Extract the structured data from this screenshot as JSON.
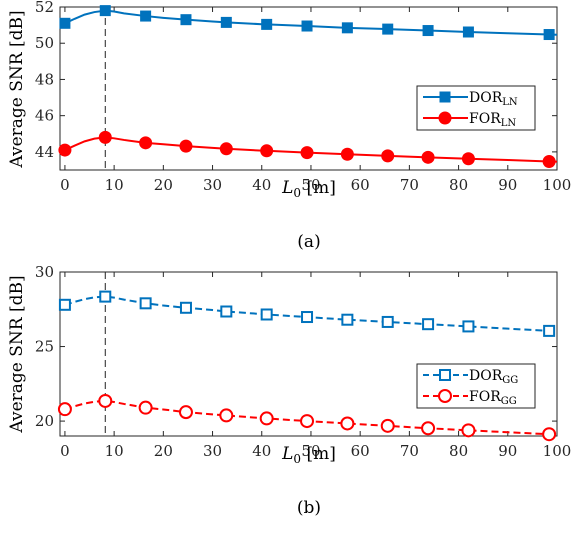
{
  "chart_data": [
    {
      "type": "line",
      "caption": "(a)",
      "xlabel": "L",
      "xlabel_sub": "0",
      "xlabel_unit": " [m]",
      "ylabel": "Average SNR [dB]",
      "xlim": [
        -1,
        100
      ],
      "ylim": [
        43,
        52
      ],
      "xticks": [
        0,
        10,
        20,
        30,
        40,
        50,
        60,
        70,
        80,
        90,
        100
      ],
      "yticks": [
        44,
        46,
        48,
        50,
        52
      ],
      "grid": false,
      "legend_position": "right-middle",
      "vline_x": 8.2,
      "series": [
        {
          "name": "DOR",
          "name_sub": "LN",
          "color": "#0072BD",
          "marker": "filled-square",
          "line": "solid",
          "curve": [
            [
              0,
              51.1
            ],
            [
              2,
              51.35
            ],
            [
              4,
              51.58
            ],
            [
              6,
              51.72
            ],
            [
              8.2,
              51.8
            ],
            [
              10,
              51.75
            ],
            [
              12,
              51.65
            ],
            [
              16.4,
              51.5
            ],
            [
              20,
              51.4
            ],
            [
              24.6,
              51.3
            ],
            [
              30,
              51.2
            ],
            [
              32.8,
              51.15
            ],
            [
              40,
              51.05
            ],
            [
              41,
              51.04
            ],
            [
              49.2,
              50.95
            ],
            [
              57.4,
              50.85
            ],
            [
              65.6,
              50.78
            ],
            [
              73.8,
              50.7
            ],
            [
              82,
              50.62
            ],
            [
              90,
              50.55
            ],
            [
              98.4,
              50.48
            ],
            [
              100,
              50.47
            ]
          ],
          "markers": [
            [
              0,
              51.1
            ],
            [
              8.2,
              51.8
            ],
            [
              16.4,
              51.5
            ],
            [
              24.6,
              51.3
            ],
            [
              32.8,
              51.15
            ],
            [
              41,
              51.04
            ],
            [
              49.2,
              50.95
            ],
            [
              57.4,
              50.85
            ],
            [
              65.6,
              50.78
            ],
            [
              73.8,
              50.7
            ],
            [
              82,
              50.62
            ],
            [
              98.4,
              50.48
            ]
          ]
        },
        {
          "name": "FOR",
          "name_sub": "LN",
          "color": "#FF0000",
          "marker": "filled-circle",
          "line": "solid",
          "curve": [
            [
              0,
              44.1
            ],
            [
              2,
              44.35
            ],
            [
              4,
              44.58
            ],
            [
              6,
              44.73
            ],
            [
              8.2,
              44.8
            ],
            [
              10,
              44.75
            ],
            [
              12,
              44.66
            ],
            [
              16.4,
              44.5
            ],
            [
              20,
              44.42
            ],
            [
              24.6,
              44.32
            ],
            [
              30,
              44.22
            ],
            [
              32.8,
              44.17
            ],
            [
              40,
              44.07
            ],
            [
              41,
              44.06
            ],
            [
              49.2,
              43.96
            ],
            [
              57.4,
              43.87
            ],
            [
              65.6,
              43.78
            ],
            [
              73.8,
              43.7
            ],
            [
              82,
              43.62
            ],
            [
              90,
              43.55
            ],
            [
              98.4,
              43.47
            ],
            [
              100,
              43.46
            ]
          ],
          "markers": [
            [
              0,
              44.1
            ],
            [
              8.2,
              44.8
            ],
            [
              16.4,
              44.5
            ],
            [
              24.6,
              44.32
            ],
            [
              32.8,
              44.17
            ],
            [
              41,
              44.06
            ],
            [
              49.2,
              43.96
            ],
            [
              57.4,
              43.87
            ],
            [
              65.6,
              43.78
            ],
            [
              73.8,
              43.7
            ],
            [
              82,
              43.62
            ],
            [
              98.4,
              43.47
            ]
          ]
        }
      ]
    },
    {
      "type": "line",
      "caption": "(b)",
      "xlabel": "L",
      "xlabel_sub": "0",
      "xlabel_unit": " [m]",
      "ylabel": "Average SNR [dB]",
      "xlim": [
        -1,
        100
      ],
      "ylim": [
        19,
        30
      ],
      "xticks": [
        0,
        10,
        20,
        30,
        40,
        50,
        60,
        70,
        80,
        90,
        100
      ],
      "yticks": [
        20,
        25,
        30
      ],
      "grid": false,
      "legend_position": "right-middle",
      "vline_x": 8.2,
      "series": [
        {
          "name": "DOR",
          "name_sub": "GG",
          "color": "#0072BD",
          "marker": "open-square",
          "line": "dashed",
          "curve": [
            [
              0,
              27.8
            ],
            [
              2,
              28.0
            ],
            [
              4,
              28.18
            ],
            [
              6,
              28.3
            ],
            [
              8.2,
              28.35
            ],
            [
              10,
              28.28
            ],
            [
              12,
              28.15
            ],
            [
              16.4,
              27.9
            ],
            [
              20,
              27.75
            ],
            [
              24.6,
              27.6
            ],
            [
              30,
              27.45
            ],
            [
              32.8,
              27.35
            ],
            [
              40,
              27.18
            ],
            [
              41,
              27.15
            ],
            [
              49.2,
              26.98
            ],
            [
              57.4,
              26.8
            ],
            [
              65.6,
              26.65
            ],
            [
              73.8,
              26.5
            ],
            [
              82,
              26.35
            ],
            [
              90,
              26.2
            ],
            [
              98.4,
              26.05
            ],
            [
              100,
              26.03
            ]
          ],
          "markers": [
            [
              0,
              27.8
            ],
            [
              8.2,
              28.35
            ],
            [
              16.4,
              27.9
            ],
            [
              24.6,
              27.6
            ],
            [
              32.8,
              27.35
            ],
            [
              41,
              27.15
            ],
            [
              49.2,
              26.98
            ],
            [
              57.4,
              26.8
            ],
            [
              65.6,
              26.65
            ],
            [
              73.8,
              26.5
            ],
            [
              82,
              26.35
            ],
            [
              98.4,
              26.05
            ]
          ]
        },
        {
          "name": "FOR",
          "name_sub": "GG",
          "color": "#FF0000",
          "marker": "open-circle",
          "line": "dashed",
          "curve": [
            [
              0,
              20.8
            ],
            [
              2,
              21.0
            ],
            [
              4,
              21.18
            ],
            [
              6,
              21.3
            ],
            [
              8.2,
              21.35
            ],
            [
              10,
              21.28
            ],
            [
              12,
              21.15
            ],
            [
              16.4,
              20.9
            ],
            [
              20,
              20.78
            ],
            [
              24.6,
              20.6
            ],
            [
              30,
              20.45
            ],
            [
              32.8,
              20.38
            ],
            [
              40,
              20.2
            ],
            [
              41,
              20.18
            ],
            [
              49.2,
              20.0
            ],
            [
              57.4,
              19.84
            ],
            [
              65.6,
              19.68
            ],
            [
              73.8,
              19.52
            ],
            [
              82,
              19.38
            ],
            [
              90,
              19.25
            ],
            [
              98.4,
              19.12
            ],
            [
              100,
              19.1
            ]
          ],
          "markers": [
            [
              0,
              20.8
            ],
            [
              8.2,
              21.35
            ],
            [
              16.4,
              20.9
            ],
            [
              24.6,
              20.6
            ],
            [
              32.8,
              20.38
            ],
            [
              41,
              20.18
            ],
            [
              49.2,
              20.0
            ],
            [
              57.4,
              19.84
            ],
            [
              65.6,
              19.68
            ],
            [
              73.8,
              19.52
            ],
            [
              82,
              19.38
            ],
            [
              98.4,
              19.12
            ]
          ]
        }
      ]
    }
  ]
}
